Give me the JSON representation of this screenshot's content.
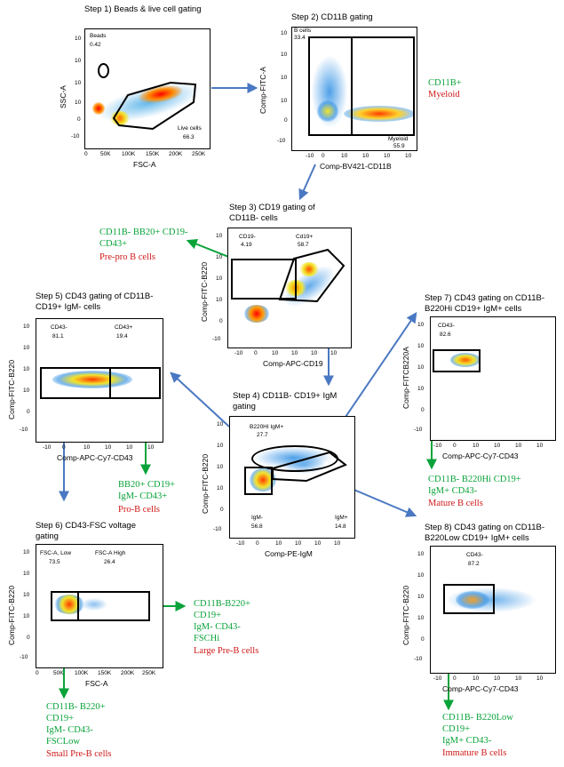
{
  "colors": {
    "green": "#0aa33a",
    "red": "#d01818",
    "blue_arrow": "#4a78c2"
  },
  "p1": {
    "title": "Step 1) Beads & live cell gating",
    "ylabel": "SSC-A",
    "xlabel": "FSC-A",
    "yticks": [
      "10",
      "10",
      "10",
      "10",
      "0",
      "-10"
    ],
    "xticks": [
      "0",
      "50K",
      "100K",
      "150K",
      "200K",
      "250K"
    ],
    "gates": [
      {
        "name": "Beads",
        "value": "0.42"
      },
      {
        "name": "Live cells",
        "value": "66.3"
      }
    ]
  },
  "p2": {
    "title": "Step 2) CD11B gating",
    "ylabel": "Comp-FITC-A",
    "xlabel": "Comp-BV421-CD11B",
    "yticks": [
      "10",
      "10",
      "10",
      "10",
      "0",
      "-10"
    ],
    "xticks": [
      "-10",
      "0",
      "10",
      "10",
      "10",
      "10"
    ],
    "gates": [
      {
        "name": "B cells",
        "value": "33.4"
      },
      {
        "name": "Myeloid",
        "value": "55.9"
      }
    ],
    "marker": "CD11B+",
    "population": "Myeloid"
  },
  "p3": {
    "title_line1": "Step 3) CD19 gating of",
    "title_line2": "CD11B- cells",
    "ylabel": "Comp-FITC-B220",
    "xlabel": "Comp-APC-CD19",
    "yticks": [
      "10",
      "10",
      "10",
      "10",
      "0",
      "-10"
    ],
    "xticks": [
      "-10",
      "0",
      "10",
      "10",
      "10",
      "10"
    ],
    "gates": [
      {
        "name": "CD19-",
        "value": "4.19"
      },
      {
        "name": "Cd19+",
        "value": "58.7"
      }
    ],
    "pop_line1": "CD11B- BB20+ CD19-",
    "pop_line2": "CD43+",
    "pop_name": "Pre-pro B cells"
  },
  "p4": {
    "title_line1": "Step 4) CD11B- CD19+ IgM",
    "title_line2": "gating",
    "ylabel": "Comp-FITC-B220",
    "xlabel": "Comp-PE-IgM",
    "yticks": [
      "10",
      "10",
      "10",
      "10",
      "0",
      "-10"
    ],
    "xticks": [
      "-10",
      "0",
      "10",
      "10",
      "10",
      "10"
    ],
    "gates": [
      {
        "name": "B220HI IgM+",
        "value": "27.7"
      },
      {
        "name": "IgM-",
        "value": "56.8"
      },
      {
        "name": "IgM+",
        "value": "14.8"
      }
    ]
  },
  "p5": {
    "title_line1": "Step 5) CD43 gating of CD11B-",
    "title_line2": "CD19+ IgM- cells",
    "ylabel": "Comp-FITC-B220",
    "xlabel": "Comp-APC-Cy7-CD43",
    "yticks": [
      "10",
      "10",
      "10",
      "10",
      "0",
      "-10"
    ],
    "xticks": [
      "-10",
      "0",
      "10",
      "10",
      "10",
      "10"
    ],
    "gates": [
      {
        "name": "CD43-",
        "value": "81.1"
      },
      {
        "name": "CD43+",
        "value": "19.4"
      }
    ],
    "pop_line1": "BB20+ CD19+",
    "pop_line2": "IgM- CD43+",
    "pop_name": "Pro-B cells"
  },
  "p6": {
    "title_line1": "Step 6) CD43-FSC voltage",
    "title_line2": "gating",
    "ylabel": "Comp-FITC-B220",
    "xlabel": "FSC-A",
    "yticks": [
      "10",
      "10",
      "10",
      "10",
      "0",
      "-10"
    ],
    "xticks": [
      "0",
      "50K",
      "100K",
      "150K",
      "200K",
      "250K"
    ],
    "gates": [
      {
        "name": "FSC-A, Low",
        "value": "73.5"
      },
      {
        "name": "FSC-A High",
        "value": "26.4"
      }
    ],
    "high_pop": [
      "CD11B-B220+",
      "CD19+",
      "IgM- CD43-",
      "FSCHi"
    ],
    "high_name": "Large Pre-B cells",
    "low_pop": [
      "CD11B- B220+",
      "CD19+",
      "IgM- CD43-",
      "FSCLow"
    ],
    "low_name": "Small Pre-B cells"
  },
  "p7": {
    "title_line1": "Step 7) CD43 gating on CD11B-",
    "title_line2": "B220Hi CD19+ IgM+ cells",
    "ylabel": "Comp-FITCB220A",
    "xlabel": "Comp-APC-Cy7-CD43",
    "yticks": [
      "10",
      "10",
      "10",
      "10",
      "0",
      "-10"
    ],
    "xticks": [
      "-10",
      "0",
      "10",
      "10",
      "10",
      "10"
    ],
    "gates": [
      {
        "name": "CD43-",
        "value": "82.6"
      }
    ],
    "pop_line1": "CD11B- B220Hi CD19+",
    "pop_line2": "IgM+ CD43-",
    "pop_name": "Mature B cells"
  },
  "p8": {
    "title_line1": "Step 8) CD43 gating on CD11B-",
    "title_line2": "B220Low CD19+ IgM+ cells",
    "ylabel": "Comp-FITC-B220",
    "xlabel": "Comp-APC-Cy7-CD43",
    "yticks": [
      "10",
      "10",
      "10",
      "10",
      "0",
      "-10"
    ],
    "xticks": [
      "-10",
      "0",
      "10",
      "10",
      "10",
      "10"
    ],
    "gates": [
      {
        "name": "CD43-",
        "value": "87.2"
      }
    ],
    "pop_line1": "CD11B- B220Low",
    "pop_line2": "CD19+",
    "pop_line3": "IgM+ CD43-",
    "pop_name": "Immature B cells"
  }
}
